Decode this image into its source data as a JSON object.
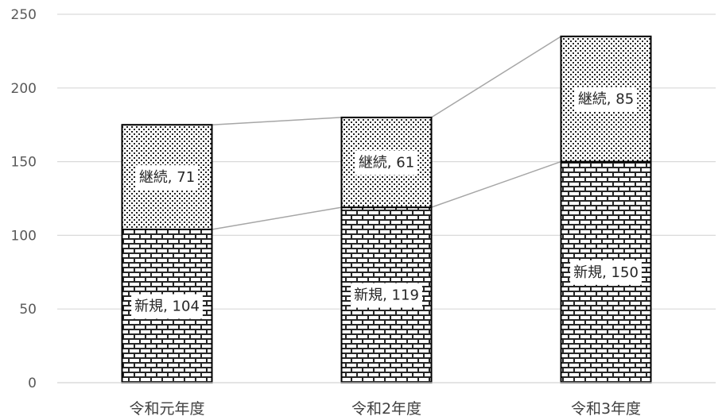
{
  "chart_data": {
    "type": "bar",
    "stacked": true,
    "categories": [
      "令和元年度",
      "令和2年度",
      "令和3年度"
    ],
    "series": [
      {
        "name": "新規",
        "values": [
          104,
          119,
          150
        ],
        "labels": [
          "新規, 104",
          "新規, 119",
          "新規, 150"
        ],
        "fill": "brick-pattern"
      },
      {
        "name": "継続",
        "values": [
          71,
          61,
          85
        ],
        "labels": [
          "継続, 71",
          "継続, 61",
          "継続, 85"
        ],
        "fill": "dotted-pattern"
      }
    ],
    "ylim": [
      0,
      250
    ],
    "yticks": [
      "0",
      "50",
      "100",
      "150",
      "200",
      "250"
    ],
    "grid": true,
    "legend": "none",
    "series_lines": true,
    "colors": {
      "gridline": "#d9d9d9",
      "bar_outline": "#000000",
      "series_line": "#a6a6a6",
      "pattern": "#262626"
    }
  }
}
